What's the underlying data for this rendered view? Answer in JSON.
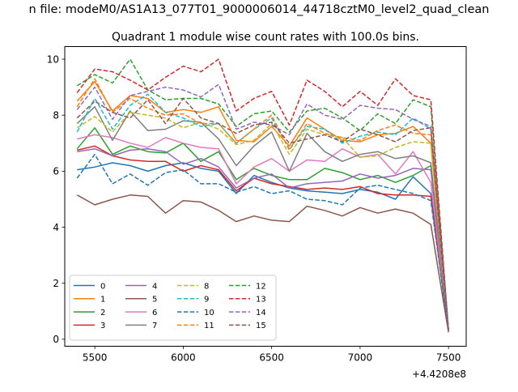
{
  "figure": {
    "suptitle": "n file: modeM0/AS1A13_077T01_9000006014_44718cztM0_level2_quad_clean",
    "title": "Quadrant 1 module wise count rates with 100.0s bins.",
    "offset_label": "+4.4208e8"
  },
  "chart_data": {
    "type": "line",
    "title": "Quadrant 1 module wise count rates with 100.0s bins.",
    "x_offset": 442080000,
    "x": [
      5400,
      5500,
      5600,
      5700,
      5800,
      5900,
      6000,
      6100,
      6200,
      6300,
      6400,
      6500,
      6600,
      6700,
      6800,
      6900,
      7000,
      7100,
      7200,
      7300,
      7400,
      7500
    ],
    "xlim": [
      5330,
      7600
    ],
    "ylim": [
      -0.25,
      10.45
    ],
    "xticks": [
      5500,
      6000,
      6500,
      7000,
      7500
    ],
    "xtick_labels": [
      "5500",
      "6000",
      "6500",
      "7000",
      "7500"
    ],
    "yticks": [
      0,
      2,
      4,
      6,
      8,
      10
    ],
    "ytick_labels": [
      "0",
      "2",
      "4",
      "6",
      "8",
      "10"
    ],
    "grid": false,
    "legend": {
      "placement": "lower-left",
      "columns": 4
    },
    "series": [
      {
        "name": "0",
        "color": "#1f77b4",
        "dash": "solid",
        "values": [
          6.05,
          6.15,
          6.3,
          6.2,
          6.0,
          6.2,
          6.3,
          6.1,
          6.0,
          5.2,
          5.85,
          5.6,
          5.4,
          5.3,
          5.25,
          5.2,
          5.35,
          5.25,
          5.0,
          5.8,
          5.2,
          0.35
        ]
      },
      {
        "name": "1",
        "color": "#ff7f0e",
        "dash": "solid",
        "values": [
          8.5,
          9.2,
          8.15,
          8.7,
          8.6,
          8.1,
          8.2,
          8.1,
          8.3,
          7.1,
          7.05,
          7.6,
          6.9,
          7.9,
          7.5,
          7.1,
          7.05,
          7.3,
          7.35,
          7.6,
          7.0,
          0.3
        ]
      },
      {
        "name": "2",
        "color": "#2ca02c",
        "dash": "solid",
        "values": [
          6.8,
          7.55,
          6.6,
          6.9,
          6.7,
          6.65,
          7.0,
          6.35,
          6.7,
          5.7,
          6.1,
          5.85,
          5.7,
          5.7,
          6.1,
          5.95,
          5.7,
          5.85,
          5.6,
          5.85,
          6.2,
          0.3
        ]
      },
      {
        "name": "3",
        "color": "#d62728",
        "dash": "solid",
        "values": [
          6.75,
          6.9,
          6.55,
          6.4,
          6.35,
          6.35,
          6.0,
          6.2,
          6.05,
          5.3,
          5.75,
          5.55,
          5.45,
          5.35,
          5.4,
          5.35,
          5.45,
          5.2,
          5.15,
          5.15,
          5.1,
          0.3
        ]
      },
      {
        "name": "4",
        "color": "#9467bd",
        "dash": "solid",
        "values": [
          6.7,
          6.8,
          6.55,
          6.75,
          6.8,
          6.7,
          6.25,
          6.45,
          6.15,
          5.4,
          5.75,
          5.9,
          5.4,
          5.55,
          5.6,
          5.65,
          5.9,
          5.75,
          5.85,
          6.1,
          6.05,
          0.3
        ]
      },
      {
        "name": "5",
        "color": "#8c564b",
        "dash": "solid",
        "values": [
          5.15,
          4.8,
          5.0,
          5.15,
          5.1,
          4.5,
          4.95,
          4.9,
          4.6,
          4.2,
          4.4,
          4.25,
          4.2,
          4.75,
          4.6,
          4.4,
          4.7,
          4.5,
          4.65,
          4.5,
          4.1,
          0.25
        ]
      },
      {
        "name": "6",
        "color": "#e377c2",
        "dash": "solid",
        "values": [
          7.15,
          7.3,
          7.2,
          7.0,
          6.85,
          7.2,
          7.0,
          6.85,
          6.8,
          5.55,
          6.15,
          6.45,
          6.0,
          6.4,
          6.35,
          6.8,
          6.5,
          6.6,
          5.9,
          6.7,
          5.6,
          0.3
        ]
      },
      {
        "name": "7",
        "color": "#7f7f7f",
        "dash": "solid",
        "values": [
          7.7,
          8.3,
          7.1,
          8.15,
          7.45,
          7.5,
          7.8,
          7.75,
          7.15,
          6.2,
          6.9,
          7.4,
          6.0,
          7.35,
          6.7,
          6.35,
          6.6,
          6.7,
          6.45,
          6.55,
          6.3,
          0.3
        ]
      },
      {
        "name": "8",
        "color": "#bcbd22",
        "dash": "dashed",
        "values": [
          7.55,
          7.95,
          7.4,
          8.1,
          8.0,
          7.9,
          7.55,
          7.75,
          7.5,
          6.95,
          7.1,
          7.7,
          6.6,
          7.5,
          7.3,
          7.2,
          6.5,
          6.55,
          6.85,
          7.05,
          7.0,
          0.3
        ]
      },
      {
        "name": "9",
        "color": "#17becf",
        "dash": "dashed",
        "values": [
          7.4,
          8.6,
          7.5,
          8.35,
          8.75,
          8.1,
          7.9,
          7.6,
          7.7,
          7.0,
          7.5,
          7.9,
          6.8,
          7.6,
          7.5,
          7.0,
          7.25,
          7.4,
          7.3,
          7.9,
          7.5,
          0.35
        ]
      },
      {
        "name": "10",
        "color": "#1f77b4",
        "dash": "dashed",
        "values": [
          5.75,
          6.6,
          5.55,
          5.9,
          5.5,
          5.95,
          6.05,
          5.55,
          5.55,
          5.25,
          5.45,
          5.2,
          5.3,
          5.0,
          4.95,
          4.8,
          5.4,
          5.5,
          5.35,
          5.2,
          4.95,
          0.3
        ]
      },
      {
        "name": "11",
        "color": "#ff7f0e",
        "dash": "dashed",
        "values": [
          8.3,
          9.3,
          8.1,
          8.6,
          8.25,
          8.0,
          8.05,
          7.7,
          7.7,
          7.0,
          7.5,
          8.0,
          6.75,
          7.7,
          7.35,
          7.2,
          7.1,
          7.45,
          7.65,
          7.35,
          7.3,
          0.3
        ]
      },
      {
        "name": "12",
        "color": "#2ca02c",
        "dash": "dashed",
        "values": [
          9.05,
          9.45,
          9.15,
          10.0,
          8.9,
          8.55,
          8.6,
          8.6,
          8.4,
          7.6,
          8.05,
          8.15,
          7.4,
          8.15,
          8.25,
          7.9,
          7.45,
          8.05,
          7.7,
          8.55,
          8.3,
          0.35
        ]
      },
      {
        "name": "13",
        "color": "#d62728",
        "dash": "dashed",
        "values": [
          8.8,
          9.65,
          9.55,
          9.25,
          8.9,
          9.35,
          9.75,
          9.55,
          10.0,
          8.15,
          8.6,
          8.85,
          7.65,
          9.25,
          8.85,
          8.3,
          8.85,
          8.35,
          9.3,
          8.7,
          8.55,
          0.35
        ]
      },
      {
        "name": "14",
        "color": "#9467bd",
        "dash": "dashed",
        "values": [
          8.2,
          9.0,
          7.85,
          8.7,
          8.85,
          9.0,
          8.9,
          8.65,
          9.1,
          7.5,
          7.75,
          7.65,
          7.3,
          8.4,
          8.0,
          7.85,
          8.35,
          8.25,
          8.2,
          7.85,
          7.6,
          0.35
        ]
      },
      {
        "name": "15",
        "color": "#8c564b",
        "dash": "dashed",
        "values": [
          7.9,
          8.5,
          8.1,
          7.9,
          8.55,
          7.7,
          8.6,
          7.9,
          7.7,
          7.35,
          7.65,
          7.75,
          7.0,
          7.15,
          7.3,
          7.05,
          7.5,
          7.3,
          7.05,
          7.45,
          7.55,
          0.3
        ]
      }
    ]
  }
}
